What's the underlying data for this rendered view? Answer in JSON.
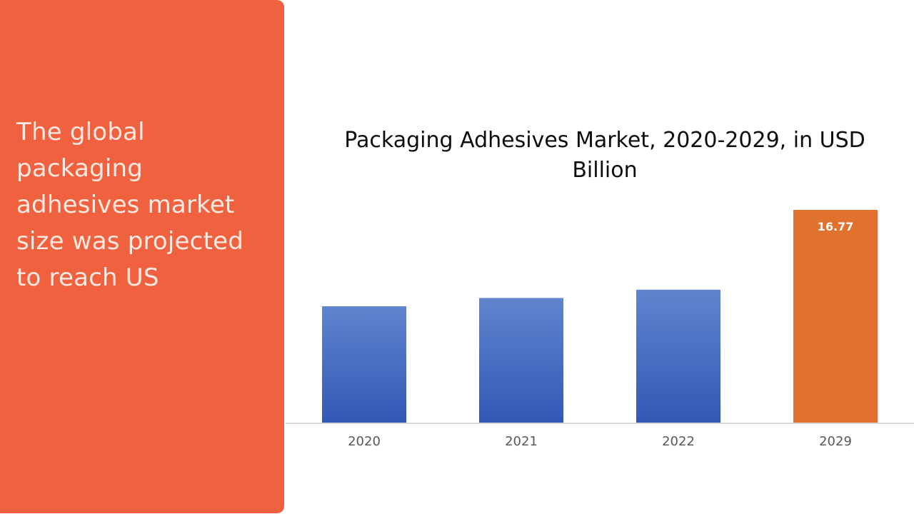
{
  "colors": {
    "panel_background": "#f0613f",
    "panel_text": "#fde9e1",
    "bar_blue_top": "#6184ce",
    "bar_blue_bottom": "#3158b5",
    "bar_highlight": "#e0712f",
    "axis_line": "#d9d9d9"
  },
  "panel": {
    "text": "The global packaging adhesives market size was projected to reach US"
  },
  "chart_data": {
    "type": "bar",
    "title": "Packaging Adhesives Market, 2020-2029, in USD Billion",
    "xlabel": "",
    "ylabel": "",
    "categories": [
      "2020",
      "2021",
      "2022",
      "2029"
    ],
    "values": [
      9.2,
      9.85,
      10.5,
      16.77
    ],
    "data_labels": [
      "",
      "",
      "",
      "16.77"
    ],
    "highlight_index": 3,
    "ylim": [
      0,
      16.77
    ],
    "grid": false,
    "legend": "none"
  }
}
